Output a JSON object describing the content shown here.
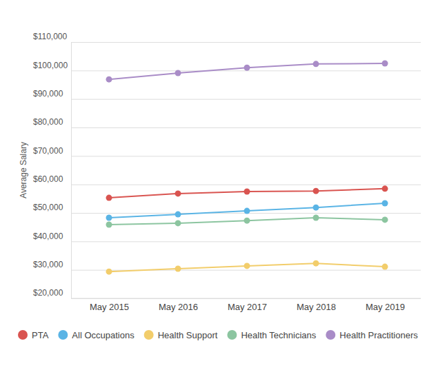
{
  "chart_data": {
    "type": "line",
    "y_label": "Average Salary",
    "categories": [
      "May 2015",
      "May 2016",
      "May 2017",
      "May 2018",
      "May 2019"
    ],
    "series": [
      {
        "name": "PTA",
        "color": "#d95450",
        "values": [
          55300,
          56800,
          57500,
          57700,
          58500
        ]
      },
      {
        "name": "All Occupations",
        "color": "#5ab4e5",
        "values": [
          48300,
          49500,
          50700,
          51900,
          53400
        ]
      },
      {
        "name": "Health Support",
        "color": "#f2cd6b",
        "values": [
          29400,
          30400,
          31400,
          32300,
          31100
        ]
      },
      {
        "name": "Health Technicians",
        "color": "#8cc5a0",
        "values": [
          45900,
          46400,
          47300,
          48300,
          47600
        ]
      },
      {
        "name": "Health Practitioners",
        "color": "#a98cc7",
        "values": [
          96900,
          99100,
          101000,
          102300,
          102500
        ]
      }
    ],
    "ylim": [
      20000,
      110000
    ],
    "yticks": [
      {
        "value": 20000,
        "label": "$20,000"
      },
      {
        "value": 30000,
        "label": "$30,000"
      },
      {
        "value": 40000,
        "label": "$40,000"
      },
      {
        "value": 50000,
        "label": "$50,000"
      },
      {
        "value": 60000,
        "label": "$60,000"
      },
      {
        "value": 70000,
        "label": "$70,000"
      },
      {
        "value": 80000,
        "label": "$80,000"
      },
      {
        "value": 90000,
        "label": "$90,000"
      },
      {
        "value": 100000,
        "label": "$100,000"
      },
      {
        "value": 110000,
        "label": "$110,000"
      }
    ],
    "grid": true,
    "marker": "circle",
    "legend": "bottom"
  }
}
